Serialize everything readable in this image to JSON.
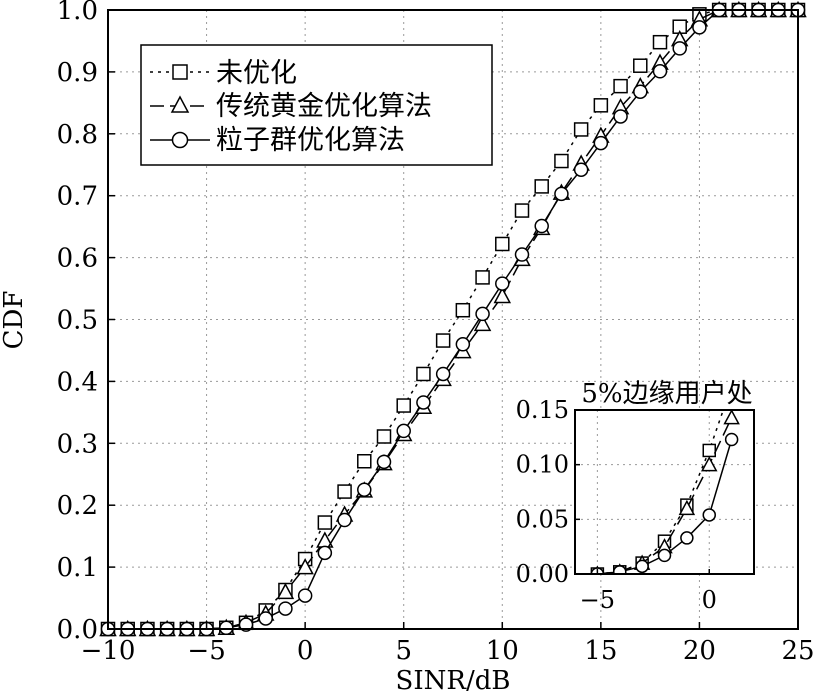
{
  "chart_data": [
    {
      "type": "line",
      "xlabel": "SINR/dB",
      "ylabel": "CDF",
      "xlim": [
        -10,
        25
      ],
      "ylim": [
        0,
        1
      ],
      "xticks": [
        -10,
        -5,
        0,
        5,
        10,
        15,
        20,
        25
      ],
      "xtick_labels": [
        "−10",
        "−5",
        "0",
        "5",
        "10",
        "15",
        "20",
        "25"
      ],
      "yticks": [
        0,
        0.1,
        0.2,
        0.3,
        0.4,
        0.5,
        0.6,
        0.7,
        0.8,
        0.9,
        1.0
      ],
      "ytick_labels": [
        "0.0",
        "0.1",
        "0.2",
        "0.3",
        "0.4",
        "0.5",
        "0.6",
        "0.7",
        "0.8",
        "0.9",
        "1.0"
      ],
      "grid": true,
      "legend_position": "top-left",
      "series": [
        {
          "name": "未优化",
          "marker": "square",
          "line_style": "dotted",
          "x": [
            -10,
            -9,
            -8,
            -7,
            -6,
            -5,
            -4,
            -3,
            -2,
            -1,
            0,
            1,
            2,
            3,
            4,
            5,
            6,
            7,
            8,
            9,
            10,
            11,
            12,
            13,
            14,
            15,
            16,
            17,
            18,
            19,
            20,
            21,
            22,
            23,
            24,
            25
          ],
          "y": [
            0,
            0,
            0,
            0,
            0,
            0,
            0.002,
            0.01,
            0.03,
            0.063,
            0.113,
            0.172,
            0.222,
            0.271,
            0.311,
            0.361,
            0.412,
            0.466,
            0.515,
            0.568,
            0.622,
            0.676,
            0.715,
            0.756,
            0.807,
            0.846,
            0.877,
            0.91,
            0.948,
            0.973,
            0.993,
            1,
            1,
            1,
            1,
            1
          ]
        },
        {
          "name": "传统黄金优化算法",
          "marker": "triangle",
          "line_style": "dashed",
          "x": [
            -10,
            -9,
            -8,
            -7,
            -6,
            -5,
            -4,
            -3,
            -2,
            -1,
            0,
            1,
            2,
            3,
            4,
            5,
            6,
            7,
            8,
            9,
            10,
            11,
            12,
            13,
            14,
            15,
            16,
            17,
            18,
            19,
            20,
            21,
            22,
            23,
            24,
            25
          ],
          "y": [
            0,
            0,
            0,
            0,
            0,
            0,
            0.002,
            0.01,
            0.025,
            0.06,
            0.1,
            0.143,
            0.185,
            0.224,
            0.268,
            0.315,
            0.359,
            0.404,
            0.449,
            0.493,
            0.538,
            0.598,
            0.648,
            0.705,
            0.752,
            0.797,
            0.843,
            0.877,
            0.915,
            0.953,
            0.985,
            1,
            1,
            1,
            1,
            1
          ]
        },
        {
          "name": "粒子群优化算法",
          "marker": "circle",
          "line_style": "solid",
          "x": [
            -10,
            -9,
            -8,
            -7,
            -6,
            -5,
            -4,
            -3,
            -2,
            -1,
            0,
            1,
            2,
            3,
            4,
            5,
            6,
            7,
            8,
            9,
            10,
            11,
            12,
            13,
            14,
            15,
            16,
            17,
            18,
            19,
            20,
            21,
            22,
            23,
            24,
            25
          ],
          "y": [
            0,
            0,
            0,
            0,
            0,
            0,
            0.002,
            0.007,
            0.017,
            0.033,
            0.054,
            0.123,
            0.176,
            0.225,
            0.27,
            0.32,
            0.366,
            0.412,
            0.46,
            0.509,
            0.558,
            0.605,
            0.651,
            0.703,
            0.742,
            0.785,
            0.828,
            0.868,
            0.901,
            0.938,
            0.972,
            1,
            1,
            1,
            1,
            1
          ]
        }
      ]
    },
    {
      "type": "line",
      "title": "5%边缘用户处",
      "xlim": [
        -6,
        2
      ],
      "ylim": [
        0,
        0.15
      ],
      "xticks": [
        -5,
        0
      ],
      "xtick_labels": [
        "−5",
        "0"
      ],
      "yticks": [
        0,
        0.05,
        0.1,
        0.15
      ],
      "ytick_labels": [
        "0.00",
        "0.05",
        "0.10",
        "0.15"
      ],
      "grid": true,
      "series": [
        {
          "name": "未优化",
          "marker": "square",
          "line_style": "dotted",
          "x": [
            -5,
            -4,
            -3,
            -2,
            -1,
            0,
            1
          ],
          "y": [
            0,
            0.002,
            0.01,
            0.03,
            0.063,
            0.113,
            0.172
          ]
        },
        {
          "name": "传统黄金优化算法",
          "marker": "triangle",
          "line_style": "dashed",
          "x": [
            -5,
            -4,
            -3,
            -2,
            -1,
            0,
            1
          ],
          "y": [
            0,
            0.002,
            0.01,
            0.025,
            0.06,
            0.1,
            0.143
          ]
        },
        {
          "name": "粒子群优化算法",
          "marker": "circle",
          "line_style": "solid",
          "x": [
            -5,
            -4,
            -3,
            -2,
            -1,
            0,
            1
          ],
          "y": [
            0,
            0.002,
            0.007,
            0.017,
            0.033,
            0.054,
            0.123
          ]
        }
      ]
    }
  ]
}
